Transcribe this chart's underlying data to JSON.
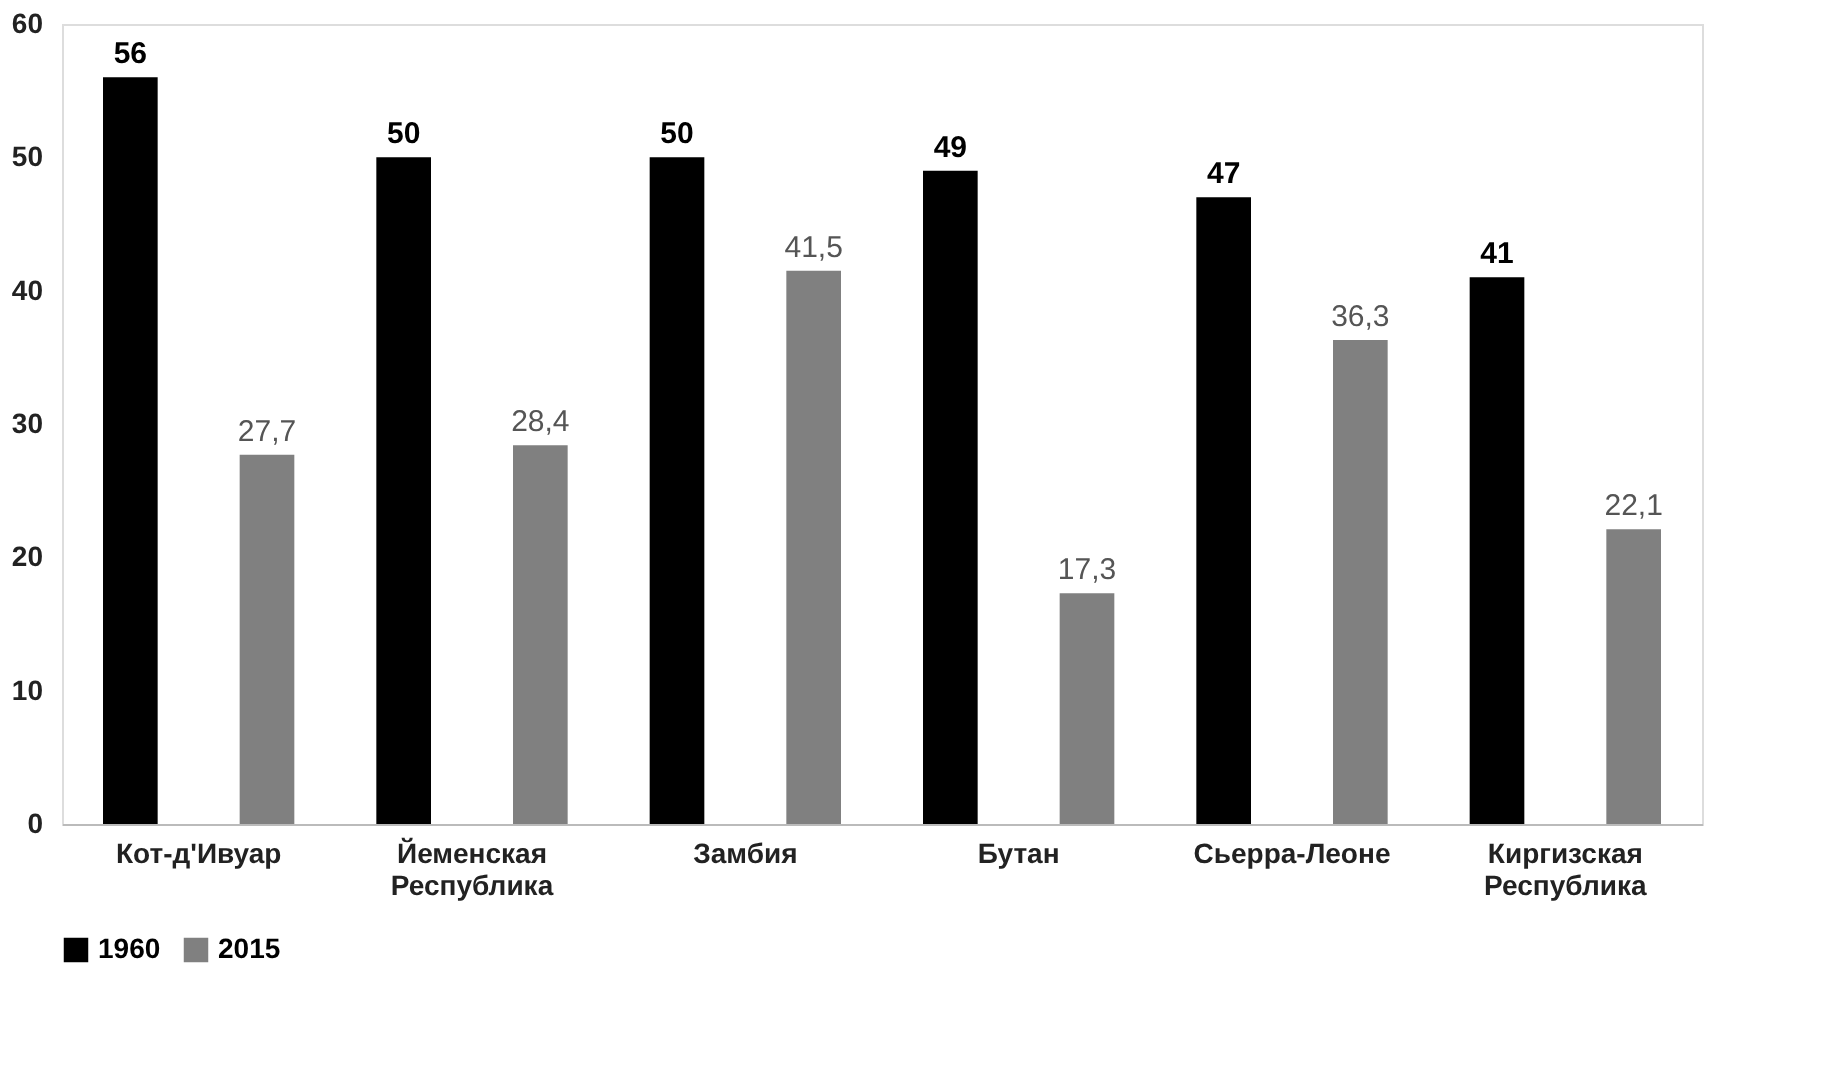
{
  "chart_data": {
    "type": "bar",
    "categories": [
      "Кот-д'Ивуар",
      "Йеменская Республика",
      "Замбия",
      "Бутан",
      "Сьерра-Леоне",
      "Киргизская Республика"
    ],
    "series": [
      {
        "name": "1960",
        "color": "#000000",
        "values": [
          56,
          50,
          50,
          49,
          47,
          41
        ],
        "value_labels": [
          "56",
          "50",
          "50",
          "49",
          "47",
          "41"
        ]
      },
      {
        "name": "2015",
        "color": "#808080",
        "values": [
          27.7,
          28.4,
          41.5,
          17.3,
          36.3,
          22.1
        ],
        "value_labels": [
          "27,7",
          "28,4",
          "41,5",
          "17,3",
          "36,3",
          "22,1"
        ]
      }
    ],
    "ylim": [
      0,
      60
    ],
    "yticks": [
      0,
      10,
      20,
      30,
      40,
      50,
      60
    ],
    "grid": false,
    "legend": "bottom"
  }
}
